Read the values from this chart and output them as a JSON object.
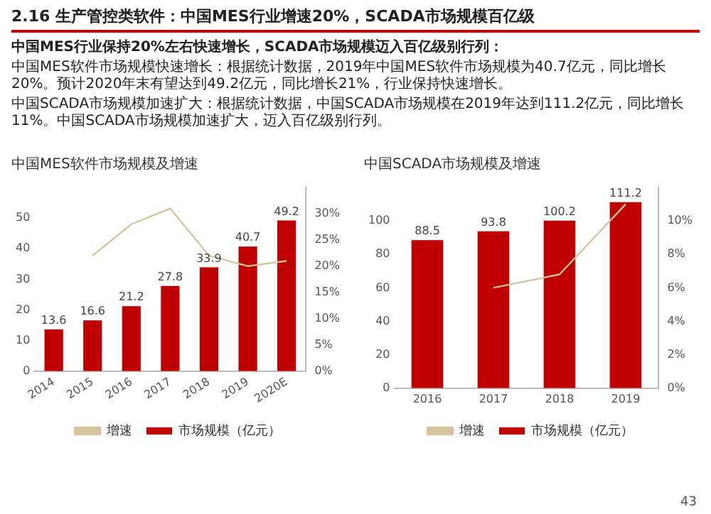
{
  "chart_data": [
    {
      "type": "other",
      "title": "2.16 生产管控类软件：中国MES行业增速20%，SCADA市场规模百亿级",
      "annotations": [
        "中国MES行业保持20%左右快速增长，SCADA市场规模迈入百亿级别行列：",
        "中国MES软件市场规模快速增长：根据统计数据，2019年中国MES软件市场规模为40.7亿元，同比增长20%。预计2020年末有望达到49.2亿元，同比增长21%，行业保持快速增长。",
        "中国SCADA市场规模加速扩大：根据统计数据，中国SCADA市场规模在2019年达到111.2亿元，同比增长11%。中国SCADA市场规模加速扩大，迈入百亿级别行列。",
        "43"
      ]
    },
    {
      "type": "bar",
      "title": "中国MES软件市场规模及增速",
      "categories": [
        "2014",
        "2015",
        "2016",
        "2017",
        "2018",
        "2019",
        "2020E"
      ],
      "series": [
        {
          "name": "市场规模（亿元）",
          "type": "bar",
          "color": "#c00000",
          "values": [
            13.6,
            16.6,
            21.2,
            27.8,
            33.9,
            40.7,
            49.2
          ],
          "value_labels": [
            "13.6",
            "16.6",
            "21.2",
            "27.8",
            "33.9",
            "40.7",
            "49.2"
          ]
        },
        {
          "name": "增速",
          "type": "line",
          "axis": "y2",
          "color": "#d6c59c",
          "values": [
            null,
            22,
            28,
            31,
            22,
            20,
            21
          ]
        }
      ],
      "ylim": [
        0,
        60
      ],
      "yticks": [
        0,
        10,
        20,
        30,
        40,
        50
      ],
      "y2lim": [
        0,
        35
      ],
      "y2ticks": [
        {
          "value": 0,
          "label": "0%"
        },
        {
          "value": 5,
          "label": "5%"
        },
        {
          "value": 10,
          "label": "10%"
        },
        {
          "value": 15,
          "label": "15%"
        },
        {
          "value": 20,
          "label": "20%"
        },
        {
          "value": 25,
          "label": "25%"
        },
        {
          "value": 30,
          "label": "30%"
        }
      ],
      "grid": false,
      "legend": "bottom"
    },
    {
      "type": "bar",
      "title": "中国SCADA市场规模及增速",
      "categories": [
        "2016",
        "2017",
        "2018",
        "2019"
      ],
      "series": [
        {
          "name": "市场规模（亿元）",
          "type": "bar",
          "color": "#c00000",
          "values": [
            88.5,
            93.8,
            100.2,
            111.2
          ],
          "value_labels": [
            "88.5",
            "93.8",
            "100.2",
            "111.2"
          ]
        },
        {
          "name": "增速",
          "type": "line",
          "axis": "y2",
          "color": "#d6c59c",
          "values": [
            null,
            6,
            6.8,
            11
          ]
        }
      ],
      "ylim": [
        0,
        120
      ],
      "yticks": [
        0,
        20,
        40,
        60,
        80,
        100
      ],
      "y2lim": [
        0,
        12
      ],
      "y2ticks": [
        {
          "value": 0,
          "label": "0%"
        },
        {
          "value": 2,
          "label": "2%"
        },
        {
          "value": 4,
          "label": "4%"
        },
        {
          "value": 6,
          "label": "6%"
        },
        {
          "value": 8,
          "label": "8%"
        },
        {
          "value": 10,
          "label": "10%"
        }
      ],
      "grid": false,
      "legend": "bottom"
    }
  ]
}
